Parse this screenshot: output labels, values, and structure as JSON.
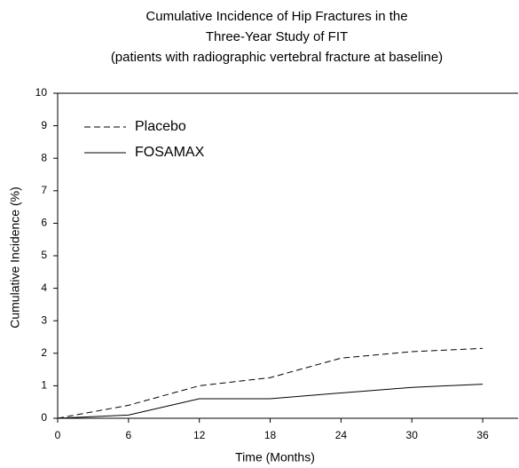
{
  "chart_data": {
    "type": "line",
    "title": [
      "Cumulative Incidence of Hip Fractures in the",
      "Three-Year Study of FIT",
      "(patients with radiographic vertebral fracture at baseline)"
    ],
    "x_label": "Time (Months)",
    "y_label": "Cumulative Incidence (%)",
    "x": [
      0,
      6,
      12,
      18,
      24,
      30,
      36
    ],
    "series": [
      {
        "name": "Placebo",
        "color": "#000000",
        "dash": true,
        "values": [
          0,
          0.4,
          1.0,
          1.25,
          1.85,
          2.05,
          2.15
        ]
      },
      {
        "name": "FOSAMAX",
        "color": "#000000",
        "dash": false,
        "values": [
          0,
          0.1,
          0.6,
          0.6,
          0.78,
          0.95,
          1.05
        ]
      }
    ],
    "xlim": [
      0,
      39
    ],
    "xticks": [
      0,
      6,
      12,
      18,
      24,
      30,
      36
    ],
    "ylim": [
      0,
      10
    ],
    "yticks": [
      0,
      1,
      2,
      3,
      4,
      5,
      6,
      7,
      8,
      9,
      10
    ],
    "legend": "upper left",
    "grid": false
  }
}
